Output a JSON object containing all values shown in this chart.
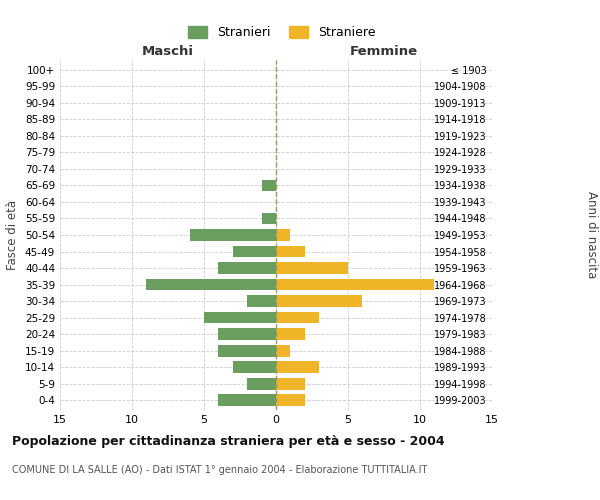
{
  "age_groups": [
    "100+",
    "95-99",
    "90-94",
    "85-89",
    "80-84",
    "75-79",
    "70-74",
    "65-69",
    "60-64",
    "55-59",
    "50-54",
    "45-49",
    "40-44",
    "35-39",
    "30-34",
    "25-29",
    "20-24",
    "15-19",
    "10-14",
    "5-9",
    "0-4"
  ],
  "birth_years": [
    "≤ 1903",
    "1904-1908",
    "1909-1913",
    "1914-1918",
    "1919-1923",
    "1924-1928",
    "1929-1933",
    "1934-1938",
    "1939-1943",
    "1944-1948",
    "1949-1953",
    "1954-1958",
    "1959-1963",
    "1964-1968",
    "1969-1973",
    "1974-1978",
    "1979-1983",
    "1984-1988",
    "1989-1993",
    "1994-1998",
    "1999-2003"
  ],
  "males": [
    0,
    0,
    0,
    0,
    0,
    0,
    0,
    1,
    0,
    1,
    6,
    3,
    4,
    9,
    2,
    5,
    4,
    4,
    3,
    2,
    4
  ],
  "females": [
    0,
    0,
    0,
    0,
    0,
    0,
    0,
    0,
    0,
    0,
    1,
    2,
    5,
    11,
    6,
    3,
    2,
    1,
    3,
    2,
    2
  ],
  "male_color": "#6a9e5e",
  "female_color": "#f0b429",
  "xlim": 15,
  "title": "Popolazione per cittadinanza straniera per età e sesso - 2004",
  "subtitle": "COMUNE DI LA SALLE (AO) - Dati ISTAT 1° gennaio 2004 - Elaborazione TUTTITALIA.IT",
  "ylabel_left": "Fasce di età",
  "ylabel_right": "Anni di nascita",
  "xlabel_left": "Maschi",
  "xlabel_right": "Femmine",
  "legend_stranieri": "Stranieri",
  "legend_straniere": "Straniere",
  "background_color": "#ffffff",
  "grid_color": "#cccccc"
}
